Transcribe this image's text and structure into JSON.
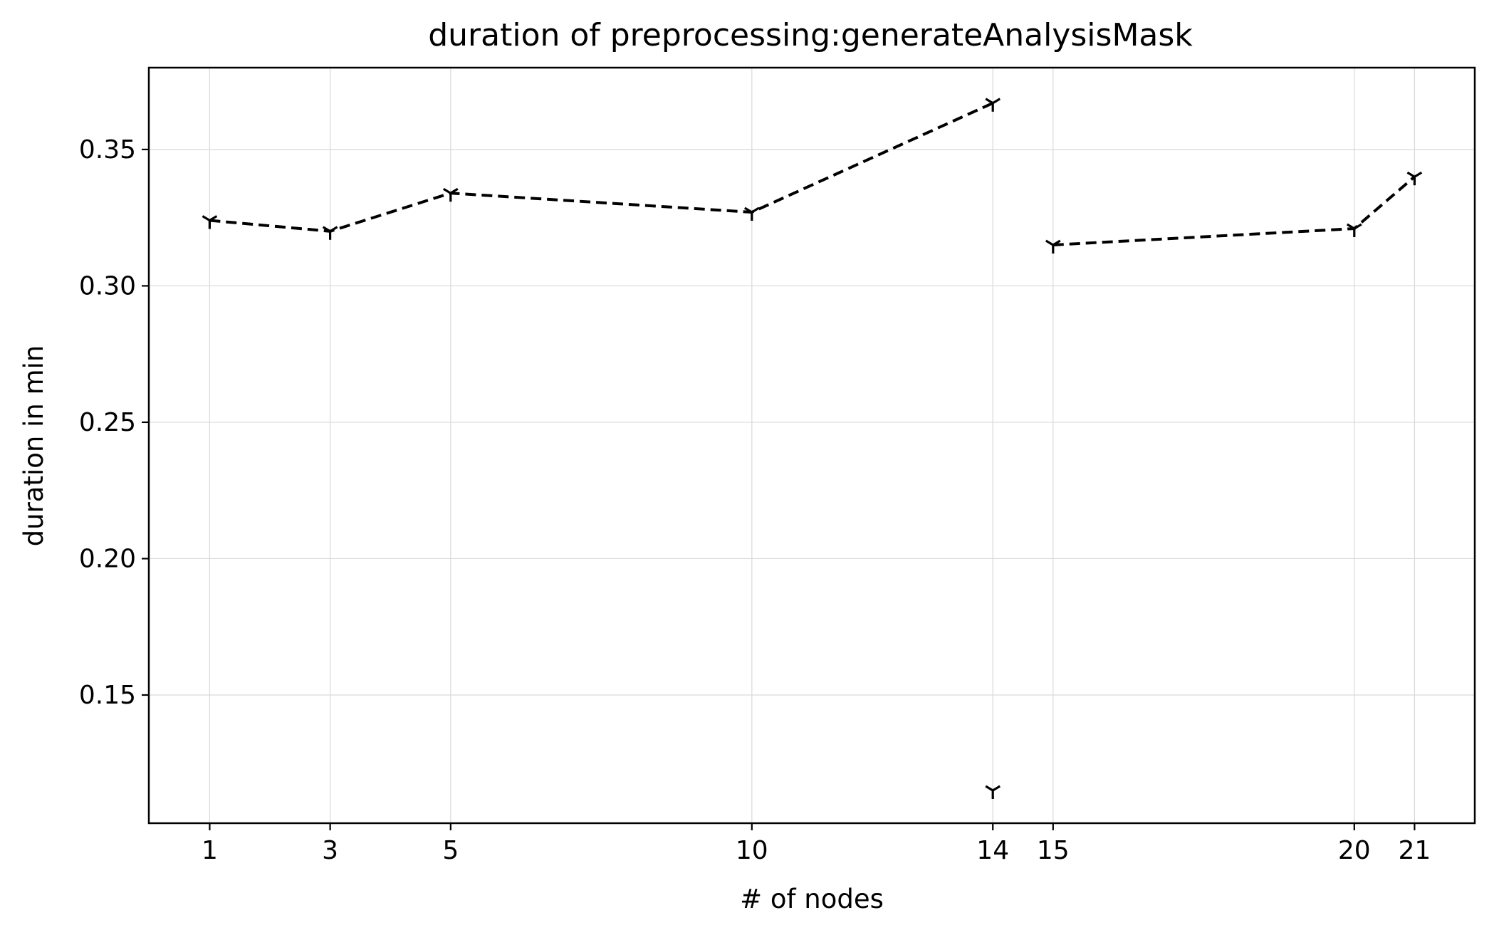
{
  "chart_data": {
    "type": "line",
    "title": "duration of preprocessing:generateAnalysisMask",
    "xlabel": "# of nodes",
    "ylabel": "duration in min",
    "x_ticks": [
      1,
      3,
      5,
      10,
      14,
      15,
      20,
      21
    ],
    "x_tick_labels": [
      "1",
      "3",
      "5",
      "10",
      "14",
      "15",
      "20",
      "21"
    ],
    "y_ticks": [
      0.15,
      0.2,
      0.25,
      0.3,
      0.35
    ],
    "y_tick_labels": [
      "0.15",
      "0.20",
      "0.25",
      "0.30",
      "0.35"
    ],
    "xlim": [
      -0.01,
      22.0
    ],
    "ylim": [
      0.103,
      0.38
    ],
    "grid": true,
    "line_style": "dashed",
    "marker": "tri_down",
    "color": "#000000",
    "series": [
      {
        "x": [
          1,
          3,
          5,
          10,
          14,
          14,
          15,
          20,
          21
        ],
        "values": [
          0.324,
          0.32,
          0.334,
          0.327,
          0.367,
          0.115,
          0.315,
          0.321,
          0.34
        ]
      }
    ]
  }
}
